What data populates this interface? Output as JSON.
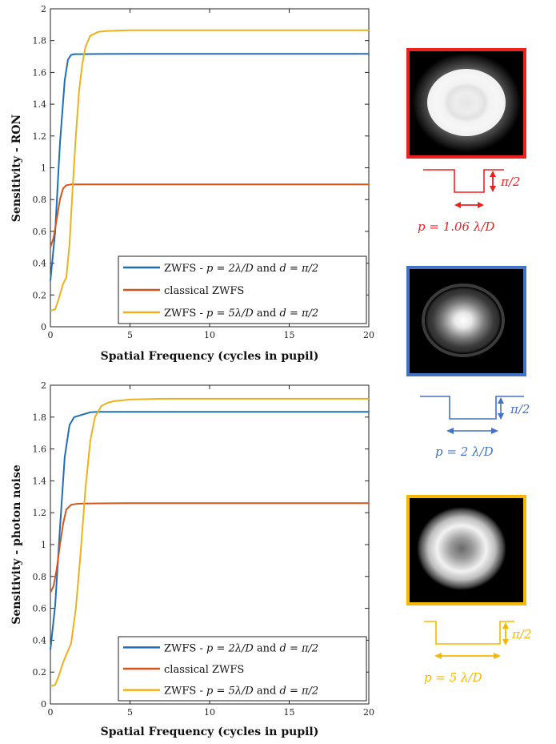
{
  "colors": {
    "zwfs_p2": "#1f6fb4",
    "classical": "#d3541c",
    "zwfs_p5": "#edb120",
    "red_mask": "#ee2020",
    "blue_mask": "#4472c4",
    "yellow_mask": "#f5b800"
  },
  "chart_data": [
    {
      "type": "line",
      "title": "",
      "xlabel": "Spatial Frequency (cycles in pupil)",
      "ylabel": "Sensitivity - RON",
      "xlim": [
        0,
        20
      ],
      "ylim": [
        0,
        2
      ],
      "xticks": [
        "0",
        "5",
        "10",
        "15",
        "20"
      ],
      "yticks": [
        "0",
        "0.2",
        "0.4",
        "0.6",
        "0.8",
        "1",
        "1.2",
        "1.4",
        "1.6",
        "1.8",
        "2"
      ],
      "grid": false,
      "legend_position": "bottom-right",
      "series": [
        {
          "name": "ZWFS - p = 2λ/D and d = π/2",
          "color_key": "zwfs_p2",
          "x": [
            0,
            0.3,
            0.6,
            0.9,
            1.1,
            1.3,
            1.5,
            2,
            3,
            5,
            10,
            15,
            20
          ],
          "y": [
            0.29,
            0.6,
            1.15,
            1.55,
            1.68,
            1.71,
            1.715,
            1.715,
            1.716,
            1.717,
            1.717,
            1.717,
            1.717
          ]
        },
        {
          "name": "classical ZWFS",
          "color_key": "classical",
          "x": [
            0,
            0.2,
            0.4,
            0.6,
            0.8,
            1.0,
            1.3,
            2,
            5,
            10,
            15,
            20
          ],
          "y": [
            0.5,
            0.56,
            0.68,
            0.8,
            0.87,
            0.89,
            0.895,
            0.895,
            0.895,
            0.895,
            0.895,
            0.895
          ]
        },
        {
          "name": "ZWFS - p = 5λ/D and d = π/2",
          "color_key": "zwfs_p5",
          "x": [
            0,
            0.3,
            0.5,
            0.8,
            1.0,
            1.2,
            1.4,
            1.6,
            1.8,
            2.0,
            2.2,
            2.5,
            3.0,
            3.5,
            5,
            10,
            15,
            20
          ],
          "y": [
            0.1,
            0.11,
            0.17,
            0.27,
            0.31,
            0.52,
            0.88,
            1.2,
            1.48,
            1.65,
            1.76,
            1.83,
            1.855,
            1.86,
            1.865,
            1.865,
            1.865,
            1.865
          ]
        }
      ]
    },
    {
      "type": "line",
      "title": "",
      "xlabel": "Spatial Frequency (cycles in pupil)",
      "ylabel": "Sensitivity - photon noise",
      "xlim": [
        0,
        20
      ],
      "ylim": [
        0,
        2
      ],
      "xticks": [
        "0",
        "5",
        "10",
        "15",
        "20"
      ],
      "yticks": [
        "0",
        "0.2",
        "0.4",
        "0.6",
        "0.8",
        "1",
        "1.2",
        "1.4",
        "1.6",
        "1.8",
        "2"
      ],
      "grid": false,
      "legend_position": "bottom-right",
      "series": [
        {
          "name": "ZWFS - p = 2λ/D and d = π/2",
          "color_key": "zwfs_p2",
          "x": [
            0,
            0.3,
            0.6,
            0.9,
            1.2,
            1.5,
            2.0,
            2.5,
            3,
            5,
            10,
            15,
            20
          ],
          "y": [
            0.34,
            0.62,
            1.1,
            1.55,
            1.75,
            1.8,
            1.815,
            1.83,
            1.833,
            1.833,
            1.833,
            1.833,
            1.833
          ]
        },
        {
          "name": "classical ZWFS",
          "color_key": "classical",
          "x": [
            0,
            0.2,
            0.4,
            0.6,
            0.8,
            1.0,
            1.3,
            1.6,
            2,
            5,
            10,
            15,
            20
          ],
          "y": [
            0.7,
            0.74,
            0.85,
            1.0,
            1.13,
            1.22,
            1.25,
            1.255,
            1.258,
            1.26,
            1.26,
            1.26,
            1.26
          ]
        },
        {
          "name": "ZWFS - p = 5λ/D and d = π/2",
          "color_key": "zwfs_p5",
          "x": [
            0,
            0.3,
            0.5,
            0.8,
            1.0,
            1.3,
            1.6,
            1.9,
            2.2,
            2.5,
            2.8,
            3.2,
            3.6,
            4,
            5,
            7,
            10,
            15,
            20
          ],
          "y": [
            0.11,
            0.12,
            0.17,
            0.26,
            0.31,
            0.38,
            0.6,
            0.95,
            1.35,
            1.65,
            1.8,
            1.87,
            1.89,
            1.9,
            1.91,
            1.915,
            1.915,
            1.915,
            1.915
          ]
        }
      ]
    }
  ],
  "legend": {
    "entries": [
      {
        "pre": "ZWFS - ",
        "math": "p = 2λ/D",
        "mid": " and ",
        "math2": "d = π/2",
        "color_key": "zwfs_p2"
      },
      {
        "pre": "classical ZWFS",
        "math": "",
        "mid": "",
        "math2": "",
        "color_key": "classical"
      },
      {
        "pre": "ZWFS - ",
        "math": "p = 5λ/D",
        "mid": " and ",
        "math2": "d = π/2",
        "color_key": "zwfs_p5"
      }
    ]
  },
  "masks": [
    {
      "name": "red",
      "phase_label": "π/2",
      "width_label": "p = 1.06 λ/D",
      "image": "flat-top bright disk"
    },
    {
      "name": "blue",
      "phase_label": "π/2",
      "width_label": "p = 2 λ/D",
      "image": "bright central spot with faint halo"
    },
    {
      "name": "yellow",
      "phase_label": "π/2",
      "width_label": "p = 5 λ/D",
      "image": "bright ring with dark center"
    }
  ]
}
